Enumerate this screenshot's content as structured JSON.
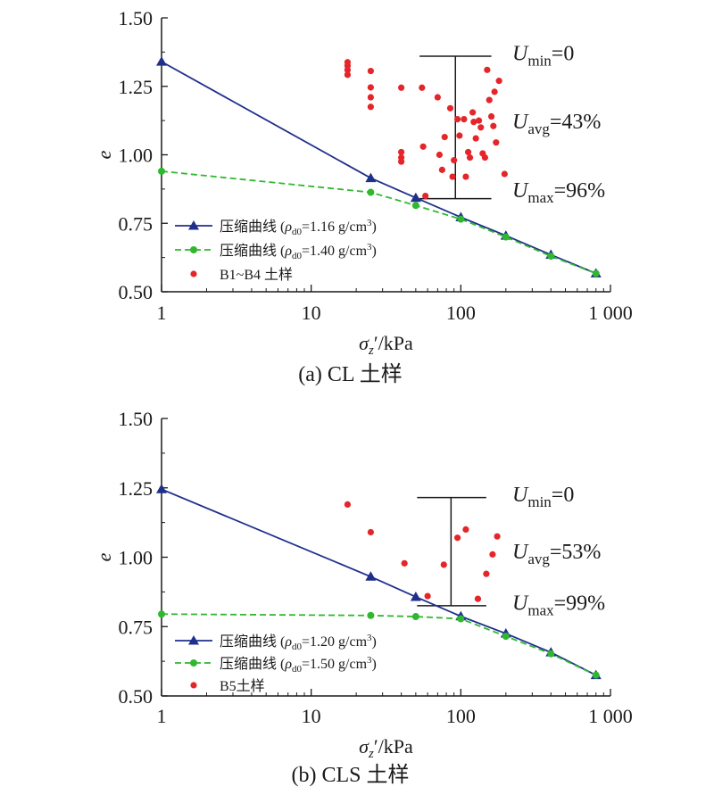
{
  "colors": {
    "axis": "#1a1a1a",
    "compression_loose": "#1f2f8c",
    "compression_dense": "#2fb82f",
    "samples": "#e4262b",
    "bracket": "#1a1a1a"
  },
  "chart_data": [
    {
      "type": "scatter",
      "panel": "a",
      "caption": "(a) CL 土样",
      "xlabel": "σz′/kPa",
      "ylabel": "e",
      "x_scale": "log",
      "xlim": [
        1,
        1000
      ],
      "ylim": [
        0.5,
        1.5
      ],
      "x_tick_labels": [
        "1",
        "10",
        "100",
        "1 000"
      ],
      "y_tick_labels": [
        "0.50",
        "0.75",
        "1.00",
        "1.25",
        "1.50"
      ],
      "legend_position": "bottom-left",
      "series": [
        {
          "name": "压缩曲线 (ρd0=1.16 g/cm³)",
          "legend_prefix": "压缩曲线 (",
          "legend_rho": "ρ",
          "legend_sub": "d0",
          "legend_mid": "=1.16 g/cm",
          "legend_sup": "3",
          "legend_end": ")",
          "style": "solid-triangle",
          "x": [
            1,
            25,
            50,
            100,
            200,
            400,
            800
          ],
          "y": [
            1.34,
            0.915,
            0.843,
            0.772,
            0.705,
            0.635,
            0.567
          ]
        },
        {
          "name": "压缩曲线 (ρd0=1.40 g/cm³)",
          "legend_prefix": "压缩曲线 (",
          "legend_rho": "ρ",
          "legend_sub": "d0",
          "legend_mid": "=1.40 g/cm",
          "legend_sup": "3",
          "legend_end": ")",
          "style": "dashed-circle",
          "x": [
            1,
            25,
            50,
            100,
            200,
            400,
            800
          ],
          "y": [
            0.94,
            0.863,
            0.815,
            0.765,
            0.7,
            0.63,
            0.567
          ]
        },
        {
          "name": "B1~B4 土样",
          "legend_prefix": "B1~B4 土样",
          "style": "dots",
          "points": [
            [
              17.5,
              1.338
            ],
            [
              17.5,
              1.325
            ],
            [
              17.5,
              1.31
            ],
            [
              17.5,
              1.292
            ],
            [
              25,
              1.306
            ],
            [
              25,
              1.246
            ],
            [
              25,
              1.21
            ],
            [
              25,
              1.175
            ],
            [
              40,
              1.245
            ],
            [
              40,
              1.01
            ],
            [
              40,
              0.99
            ],
            [
              40,
              0.975
            ],
            [
              55,
              1.245
            ],
            [
              56,
              1.03
            ],
            [
              58,
              0.85
            ],
            [
              70,
              1.21
            ],
            [
              72,
              1.0
            ],
            [
              75,
              0.945
            ],
            [
              78,
              1.065
            ],
            [
              85,
              1.17
            ],
            [
              88,
              0.92
            ],
            [
              90,
              0.98
            ],
            [
              95,
              1.13
            ],
            [
              98,
              1.07
            ],
            [
              105,
              1.13
            ],
            [
              108,
              0.92
            ],
            [
              112,
              1.01
            ],
            [
              115,
              0.99
            ],
            [
              120,
              1.155
            ],
            [
              122,
              1.12
            ],
            [
              126,
              1.06
            ],
            [
              132,
              1.125
            ],
            [
              136,
              1.1
            ],
            [
              140,
              1.005
            ],
            [
              145,
              0.99
            ],
            [
              150,
              1.31
            ],
            [
              155,
              1.2
            ],
            [
              160,
              1.14
            ],
            [
              165,
              1.105
            ],
            [
              168,
              1.23
            ],
            [
              172,
              1.045
            ],
            [
              180,
              1.27
            ],
            [
              196,
              0.93
            ]
          ]
        }
      ],
      "bracket": {
        "x": 92,
        "y_top": 1.36,
        "y_bottom": 0.84,
        "x_left": 53,
        "x_right": 160,
        "labels": [
          {
            "key": "min",
            "main": "U",
            "sub": "min",
            "value": "=0",
            "y": 1.365
          },
          {
            "key": "avg",
            "main": "U",
            "sub": "avg",
            "value": "=43%",
            "y": 1.115
          },
          {
            "key": "max",
            "main": "U",
            "sub": "max",
            "value": "=96%",
            "y": 0.865
          }
        ]
      }
    },
    {
      "type": "scatter",
      "panel": "b",
      "caption": "(b) CLS 土样",
      "xlabel": "σz′/kPa",
      "ylabel": "e",
      "x_scale": "log",
      "xlim": [
        1,
        1000
      ],
      "ylim": [
        0.5,
        1.5
      ],
      "x_tick_labels": [
        "1",
        "10",
        "100",
        "1 000"
      ],
      "y_tick_labels": [
        "0.50",
        "0.75",
        "1.00",
        "1.25",
        "1.50"
      ],
      "legend_position": "bottom-left",
      "series": [
        {
          "name": "压缩曲线 (ρd0=1.20 g/cm³)",
          "legend_prefix": "压缩曲线 (",
          "legend_rho": "ρ",
          "legend_sub": "d0",
          "legend_mid": "=1.20 g/cm",
          "legend_sup": "3",
          "legend_end": ")",
          "style": "solid-triangle",
          "x": [
            1,
            25,
            50,
            100,
            200,
            400,
            800
          ],
          "y": [
            1.245,
            0.93,
            0.857,
            0.787,
            0.725,
            0.657,
            0.575
          ]
        },
        {
          "name": "压缩曲线 (ρd0=1.50 g/cm³)",
          "legend_prefix": "压缩曲线 (",
          "legend_rho": "ρ",
          "legend_sub": "d0",
          "legend_mid": "=1.50 g/cm",
          "legend_sup": "3",
          "legend_end": ")",
          "style": "dashed-circle",
          "x": [
            1,
            25,
            50,
            100,
            200,
            400,
            800
          ],
          "y": [
            0.795,
            0.79,
            0.786,
            0.778,
            0.715,
            0.652,
            0.575
          ]
        },
        {
          "name": "B5土样",
          "legend_prefix": "B5土样",
          "style": "dots",
          "points": [
            [
              17.5,
              1.19
            ],
            [
              25,
              1.09
            ],
            [
              42,
              0.978
            ],
            [
              60,
              0.86
            ],
            [
              77,
              0.973
            ],
            [
              95,
              1.07
            ],
            [
              108,
              1.1
            ],
            [
              130,
              0.85
            ],
            [
              148,
              0.94
            ],
            [
              163,
              1.01
            ],
            [
              175,
              1.075
            ]
          ]
        }
      ],
      "bracket": {
        "x": 86,
        "y_top": 1.215,
        "y_bottom": 0.825,
        "x_left": 51,
        "x_right": 148,
        "labels": [
          {
            "key": "min",
            "main": "U",
            "sub": "min",
            "value": "=0",
            "y": 1.22
          },
          {
            "key": "avg",
            "main": "U",
            "sub": "avg",
            "value": "=53%",
            "y": 1.015
          },
          {
            "key": "max",
            "main": "U",
            "sub": "max",
            "value": "=99%",
            "y": 0.83
          }
        ]
      }
    }
  ]
}
